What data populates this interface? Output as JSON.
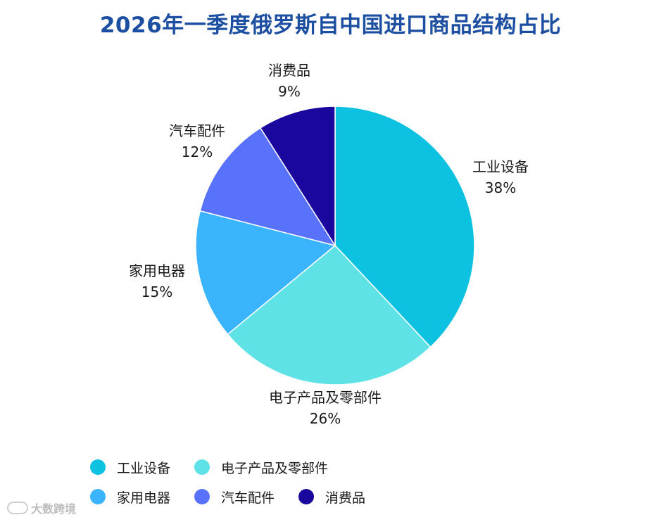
{
  "chart_data": {
    "type": "pie",
    "title": "2026年一季度俄罗斯自中国进口商品结构占比",
    "slices": [
      {
        "label": "工业设备",
        "value": 38,
        "value_label": "38%",
        "color": "#0dc1e0"
      },
      {
        "label": "电子产品及零部件",
        "value": 26,
        "value_label": "26%",
        "color": "#5ee2e6"
      },
      {
        "label": "家用电器",
        "value": 15,
        "value_label": "15%",
        "color": "#3ab4fc"
      },
      {
        "label": "汽车配件",
        "value": 12,
        "value_label": "12%",
        "color": "#5872fb"
      },
      {
        "label": "消费品",
        "value": 9,
        "value_label": "9%",
        "color": "#1a079e"
      }
    ],
    "legend_position": "bottom-left"
  },
  "watermark": {
    "text": "大数跨境"
  }
}
